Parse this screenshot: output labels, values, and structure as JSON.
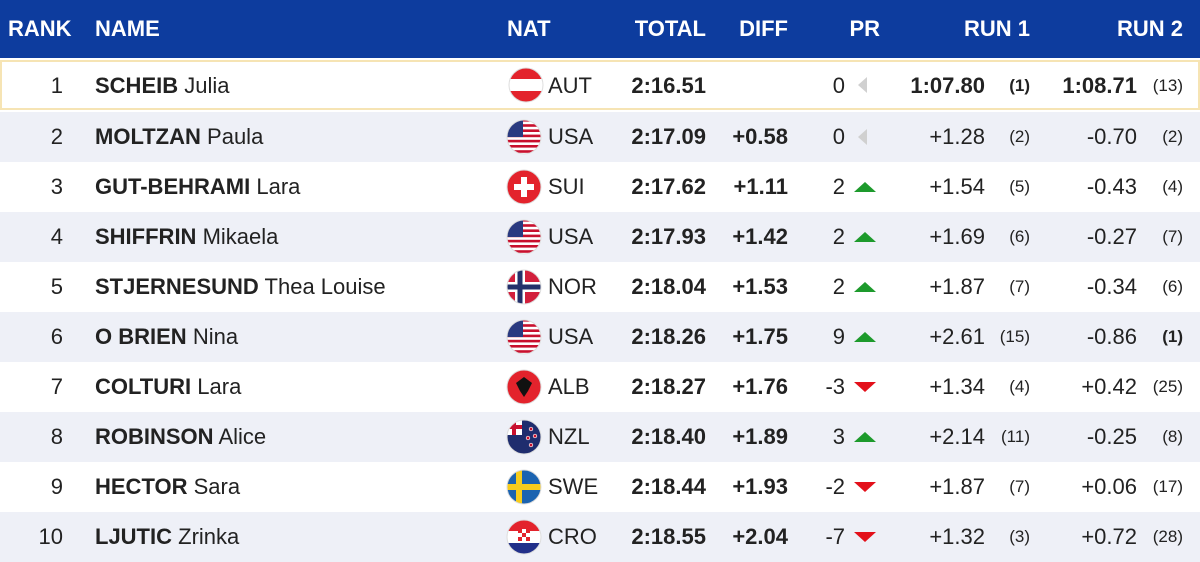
{
  "header": {
    "rank": "RANK",
    "name": "NAME",
    "nat": "NAT",
    "total": "TOTAL",
    "diff": "DIFF",
    "pr": "PR",
    "run1": "RUN 1",
    "run2": "RUN 2"
  },
  "table": {
    "rows": [
      {
        "rank": "1",
        "last": "SCHEIB",
        "first": "Julia",
        "nat": "AUT",
        "total": "2:16.51",
        "diff": "",
        "pr": "0",
        "run1": "1:07.80",
        "run1_rank": "(1)",
        "run2": "1:08.71",
        "run2_rank": "(13)"
      },
      {
        "rank": "2",
        "last": "MOLTZAN",
        "first": "Paula",
        "nat": "USA",
        "total": "2:17.09",
        "diff": "+0.58",
        "pr": "0",
        "run1": "+1.28",
        "run1_rank": "(2)",
        "run2": "-0.70",
        "run2_rank": "(2)"
      },
      {
        "rank": "3",
        "last": "GUT-BEHRAMI",
        "first": "Lara",
        "nat": "SUI",
        "total": "2:17.62",
        "diff": "+1.11",
        "pr": "2",
        "run1": "+1.54",
        "run1_rank": "(5)",
        "run2": "-0.43",
        "run2_rank": "(4)"
      },
      {
        "rank": "4",
        "last": "SHIFFRIN",
        "first": "Mikaela",
        "nat": "USA",
        "total": "2:17.93",
        "diff": "+1.42",
        "pr": "2",
        "run1": "+1.69",
        "run1_rank": "(6)",
        "run2": "-0.27",
        "run2_rank": "(7)"
      },
      {
        "rank": "5",
        "last": "STJERNESUND",
        "first": "Thea Louise",
        "nat": "NOR",
        "total": "2:18.04",
        "diff": "+1.53",
        "pr": "2",
        "run1": "+1.87",
        "run1_rank": "(7)",
        "run2": "-0.34",
        "run2_rank": "(6)"
      },
      {
        "rank": "6",
        "last": "O BRIEN",
        "first": "Nina",
        "nat": "USA",
        "total": "2:18.26",
        "diff": "+1.75",
        "pr": "9",
        "run1": "+2.61",
        "run1_rank": "(15)",
        "run2": "-0.86",
        "run2_rank": "(1)"
      },
      {
        "rank": "7",
        "last": "COLTURI",
        "first": "Lara",
        "nat": "ALB",
        "total": "2:18.27",
        "diff": "+1.76",
        "pr": "-3",
        "run1": "+1.34",
        "run1_rank": "(4)",
        "run2": "+0.42",
        "run2_rank": "(25)"
      },
      {
        "rank": "8",
        "last": "ROBINSON",
        "first": "Alice",
        "nat": "NZL",
        "total": "2:18.40",
        "diff": "+1.89",
        "pr": "3",
        "run1": "+2.14",
        "run1_rank": "(11)",
        "run2": "-0.25",
        "run2_rank": "(8)"
      },
      {
        "rank": "9",
        "last": "HECTOR",
        "first": "Sara",
        "nat": "SWE",
        "total": "2:18.44",
        "diff": "+1.93",
        "pr": "-2",
        "run1": "+1.87",
        "run1_rank": "(7)",
        "run2": "+0.06",
        "run2_rank": "(17)"
      },
      {
        "rank": "10",
        "last": "LJUTIC",
        "first": "Zrinka",
        "nat": "CRO",
        "total": "2:18.55",
        "diff": "+2.04",
        "pr": "-7",
        "run1": "+1.32",
        "run1_rank": "(3)",
        "run2": "+0.72",
        "run2_rank": "(28)"
      }
    ]
  }
}
